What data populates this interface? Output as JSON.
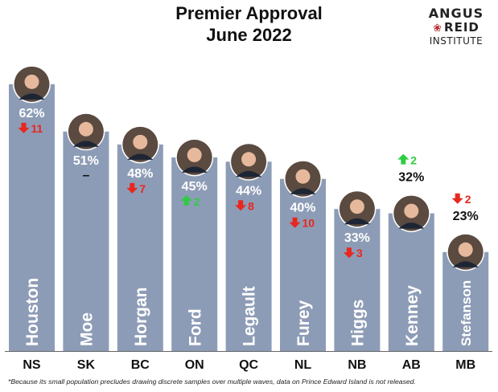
{
  "header": {
    "title_line1": "Premier Approval",
    "title_line2": "June 2022"
  },
  "logo": {
    "line1": "ANGUS",
    "line2": "REID",
    "line3": "INSTITUTE",
    "icon": "maple-leaf-icon"
  },
  "footnote": "*Because its small population precludes drawing discrete samples over multiple waves, data on Prince Edward Island is not released.",
  "colors": {
    "bar": "#8d9cb6",
    "up": "#2ecc40",
    "down": "#e8271f",
    "text": "#111111",
    "bar_label": "#ffffff"
  },
  "chart_data": {
    "type": "bar",
    "title": "Premier Approval June 2022",
    "categories": [
      "NS",
      "SK",
      "BC",
      "ON",
      "QC",
      "NL",
      "NB",
      "AB",
      "MB"
    ],
    "premiers": [
      "Houston",
      "Moe",
      "Horgan",
      "Ford",
      "Legault",
      "Furey",
      "Higgs",
      "Kenney",
      "Stefanson"
    ],
    "values": [
      62,
      51,
      48,
      45,
      44,
      40,
      33,
      32,
      23
    ],
    "value_labels": [
      "62%",
      "51%",
      "48%",
      "45%",
      "44%",
      "40%",
      "33%",
      "32%",
      "23%"
    ],
    "change": [
      -11,
      0,
      -7,
      2,
      -8,
      -10,
      -3,
      2,
      -2
    ],
    "change_labels": [
      "11",
      "–",
      "7",
      "2",
      "8",
      "10",
      "3",
      "2",
      "2"
    ],
    "ylim": [
      0,
      70
    ],
    "grid": false,
    "legend": "none"
  }
}
